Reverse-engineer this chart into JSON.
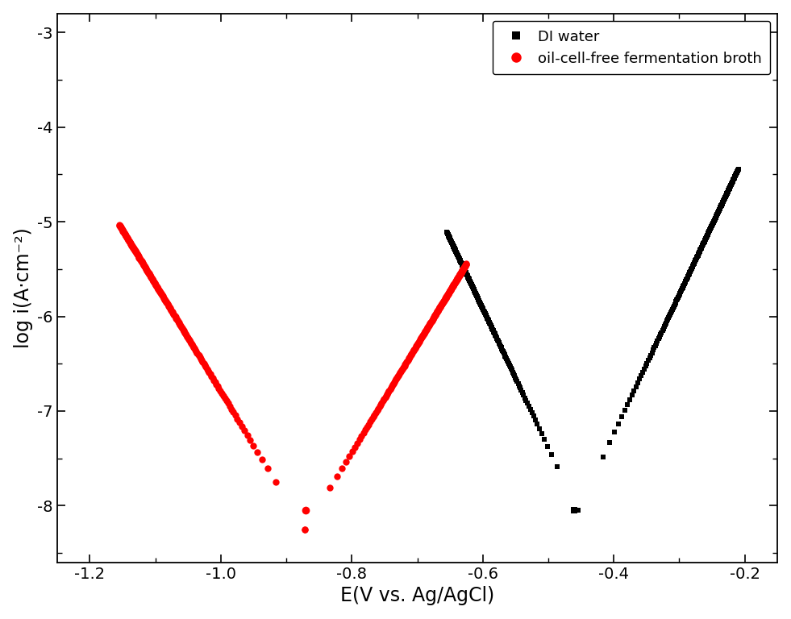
{
  "xlabel": "E(V vs. Ag/AgCl)",
  "ylabel": "log i(A·cm⁻²)",
  "xlim": [
    -1.25,
    -0.15
  ],
  "ylim": [
    -8.6,
    -2.8
  ],
  "yticks": [
    -8,
    -7,
    -6,
    -5,
    -4,
    -3
  ],
  "xticks": [
    -1.2,
    -1.0,
    -0.8,
    -0.6,
    -0.4,
    -0.2
  ],
  "legend_labels": [
    "DI water",
    "oil-cell-free fermentation broth"
  ],
  "background_color": "white",
  "black_corr_potential": -0.455,
  "black_log_icorr": -8.05,
  "black_ba": 0.068,
  "black_bc": 0.068,
  "black_E_cat_start": -0.655,
  "black_E_an_end": -0.21,
  "red_corr_potential": -0.872,
  "red_log_icorr": -8.25,
  "red_ba": 0.088,
  "red_bc": 0.088,
  "red_E_cat_start": -1.155,
  "red_E_an_end": -0.625,
  "marker_size_black": 5,
  "marker_size_red": 6,
  "label_fontsize": 17,
  "tick_fontsize": 14,
  "legend_fontsize": 13
}
